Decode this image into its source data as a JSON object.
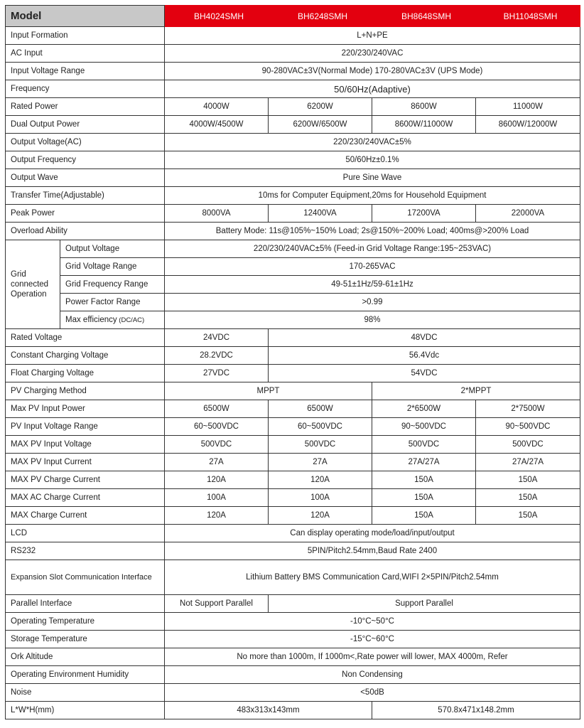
{
  "header": {
    "label": "Model",
    "models": [
      "BH4024SMH",
      "BH6248SMH",
      "BH8648SMH",
      "BH11048SMH"
    ]
  },
  "rows": [
    {
      "label": "Input Formation",
      "cells": [
        {
          "text": "L+N+PE",
          "span": 4
        }
      ]
    },
    {
      "label": "AC Input",
      "cells": [
        {
          "text": "220/230/240VAC",
          "span": 4
        }
      ]
    },
    {
      "label": "Input Voltage Range",
      "cells": [
        {
          "text": "90-280VAC±3V(Normal Mode) 170-280VAC±3V (UPS Mode)",
          "span": 4
        }
      ]
    },
    {
      "label": "Frequency",
      "cells": [
        {
          "text": "50/60Hz(Adaptive)",
          "span": 4,
          "big": true
        }
      ]
    },
    {
      "label": "Rated Power",
      "cells": [
        {
          "text": "4000W",
          "span": 1
        },
        {
          "text": "6200W",
          "span": 1
        },
        {
          "text": "8600W",
          "span": 1
        },
        {
          "text": "11000W",
          "span": 1
        }
      ]
    },
    {
      "label": "Dual Output Power",
      "cells": [
        {
          "text": "4000W/4500W",
          "span": 1
        },
        {
          "text": "6200W/6500W",
          "span": 1
        },
        {
          "text": "8600W/11000W",
          "span": 1
        },
        {
          "text": "8600W/12000W",
          "span": 1
        }
      ]
    },
    {
      "label": "Output Voltage(AC)",
      "cells": [
        {
          "text": "220/230/240VAC±5%",
          "span": 4
        }
      ]
    },
    {
      "label": "Output Frequency",
      "cells": [
        {
          "text": "50/60Hz±0.1%",
          "span": 4
        }
      ]
    },
    {
      "label": "Output Wave",
      "cells": [
        {
          "text": "Pure Sine Wave",
          "span": 4
        }
      ]
    },
    {
      "label": "Transfer Time(Adjustable)",
      "cells": [
        {
          "text": "10ms for Computer Equipment,20ms for Household Equipment",
          "span": 4
        }
      ]
    },
    {
      "label": "Peak Power",
      "cells": [
        {
          "text": "8000VA",
          "span": 1
        },
        {
          "text": "12400VA",
          "span": 1
        },
        {
          "text": "17200VA",
          "span": 1
        },
        {
          "text": "22000VA",
          "span": 1
        }
      ]
    },
    {
      "label": "Overload Ability",
      "cells": [
        {
          "text": "Battery Mode: 11s@105%~150% Load; 2s@150%~200% Load; 400ms@>200% Load",
          "span": 4
        }
      ]
    }
  ],
  "grid_group": {
    "label": "Grid connected Operation",
    "rows": [
      {
        "label": "Output Voltage",
        "text": "220/230/240VAC±5%   (Feed-in Grid Voltage Range:195~253VAC)"
      },
      {
        "label": "Grid Voltage Range",
        "text": "170-265VAC"
      },
      {
        "label": "Grid Frequency Range",
        "text": "49-51±1Hz/59-61±1Hz"
      },
      {
        "label": "Power Factor Range",
        "text": ">0.99"
      },
      {
        "label": "Max efficiency",
        "label_suffix": "(DC/AC)",
        "text": "98%"
      }
    ]
  },
  "rows2": [
    {
      "label": "Rated Voltage",
      "cells": [
        {
          "text": "24VDC",
          "span": 1
        },
        {
          "text": "48VDC",
          "span": 3
        }
      ]
    },
    {
      "label": "Constant Charging Voltage",
      "cells": [
        {
          "text": "28.2VDC",
          "span": 1
        },
        {
          "text": "56.4Vdc",
          "span": 3
        }
      ]
    },
    {
      "label": "Float Charging Voltage",
      "cells": [
        {
          "text": "27VDC",
          "span": 1
        },
        {
          "text": "54VDC",
          "span": 3
        }
      ]
    },
    {
      "label": "PV Charging Method",
      "cells": [
        {
          "text": "MPPT",
          "span": 2
        },
        {
          "text": "2*MPPT",
          "span": 2
        }
      ]
    },
    {
      "label": "Max PV Input Power",
      "cells": [
        {
          "text": "6500W",
          "span": 1
        },
        {
          "text": "6500W",
          "span": 1
        },
        {
          "text": "2*6500W",
          "span": 1
        },
        {
          "text": "2*7500W",
          "span": 1
        }
      ]
    },
    {
      "label": "PV Input Voltage Range",
      "cells": [
        {
          "text": "60~500VDC",
          "span": 1
        },
        {
          "text": "60~500VDC",
          "span": 1
        },
        {
          "text": "90~500VDC",
          "span": 1
        },
        {
          "text": "90~500VDC",
          "span": 1
        }
      ]
    },
    {
      "label": "MAX PV Input Voltage",
      "cells": [
        {
          "text": "500VDC",
          "span": 1
        },
        {
          "text": "500VDC",
          "span": 1
        },
        {
          "text": "500VDC",
          "span": 1
        },
        {
          "text": "500VDC",
          "span": 1
        }
      ]
    },
    {
      "label": "MAX PV Input Current",
      "cells": [
        {
          "text": "27A",
          "span": 1
        },
        {
          "text": "27A",
          "span": 1
        },
        {
          "text": "27A/27A",
          "span": 1
        },
        {
          "text": "27A/27A",
          "span": 1
        }
      ]
    },
    {
      "label": "MAX PV Charge Current",
      "cells": [
        {
          "text": "120A",
          "span": 1
        },
        {
          "text": "120A",
          "span": 1
        },
        {
          "text": "150A",
          "span": 1
        },
        {
          "text": "150A",
          "span": 1
        }
      ]
    },
    {
      "label": "MAX AC Charge Current",
      "cells": [
        {
          "text": "100A",
          "span": 1
        },
        {
          "text": "100A",
          "span": 1
        },
        {
          "text": "150A",
          "span": 1
        },
        {
          "text": "150A",
          "span": 1
        }
      ]
    },
    {
      "label": "MAX Charge Current",
      "cells": [
        {
          "text": "120A",
          "span": 1
        },
        {
          "text": "120A",
          "span": 1
        },
        {
          "text": "150A",
          "span": 1
        },
        {
          "text": "150A",
          "span": 1
        }
      ]
    },
    {
      "label": "LCD",
      "cells": [
        {
          "text": "Can display operating mode/load/input/output",
          "span": 4
        }
      ]
    },
    {
      "label": "RS232",
      "cells": [
        {
          "text": "5PIN/Pitch2.54mm,Baud Rate 2400",
          "span": 4
        }
      ]
    },
    {
      "label": "Expansion Slot Communication Interface",
      "tall": true,
      "cells": [
        {
          "text": "Lithium Battery BMS Communication Card,WIFI 2×5PIN/Pitch2.54mm",
          "span": 4
        }
      ]
    },
    {
      "label": "Parallel Interface",
      "cells": [
        {
          "text": "Not Support Parallel",
          "span": 1
        },
        {
          "text": "Support Parallel",
          "span": 3
        }
      ]
    },
    {
      "label": "Operating Temperature",
      "cells": [
        {
          "text": "-10°C~50°C",
          "span": 4
        }
      ]
    },
    {
      "label": "Storage Temperature",
      "cells": [
        {
          "text": "-15°C~60°C",
          "span": 4
        }
      ]
    },
    {
      "label": "Ork Altitude",
      "cells": [
        {
          "text": "No more than 1000m, If 1000m<,Rate power will lower, MAX 4000m, Refer",
          "span": 4
        }
      ]
    },
    {
      "label": "Operating Environment Humidity",
      "cells": [
        {
          "text": "Non Condensing",
          "span": 4
        }
      ]
    },
    {
      "label": "Noise",
      "cells": [
        {
          "text": "<50dB",
          "span": 4
        }
      ]
    },
    {
      "label": "L*W*H(mm)",
      "cells": [
        {
          "text": "483x313x143mm",
          "span": 2
        },
        {
          "text": "570.8x471x148.2mm",
          "span": 2
        }
      ]
    }
  ],
  "colors": {
    "header_red": "#e3000f",
    "header_gray": "#c8c8c8"
  }
}
